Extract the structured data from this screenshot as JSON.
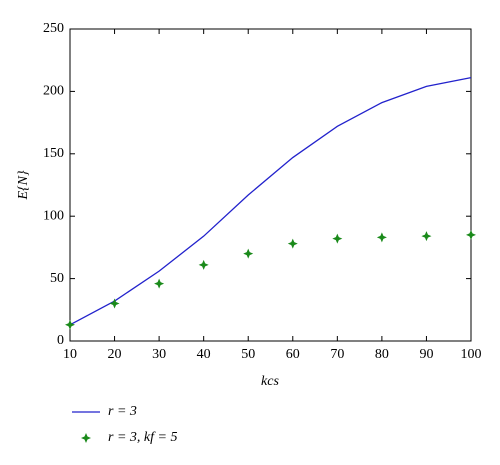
{
  "chart_data": {
    "type": "line",
    "x": [
      10,
      20,
      30,
      40,
      50,
      60,
      70,
      80,
      90,
      100
    ],
    "series": [
      {
        "name": "r = 3",
        "type": "line",
        "color": "#2222cc",
        "values": [
          13,
          32,
          56,
          84,
          117,
          147,
          172,
          191,
          204,
          211
        ]
      },
      {
        "name": "r = 3, kf = 5",
        "type": "scatter",
        "color": "#1a8a1a",
        "values": [
          13,
          30,
          46,
          61,
          70,
          78,
          82,
          83,
          84,
          85
        ]
      }
    ],
    "xlabel": "kcs",
    "ylabel": "E{N}",
    "xlim": [
      10,
      100
    ],
    "xticks": [
      10,
      20,
      30,
      40,
      50,
      60,
      70,
      80,
      90,
      100
    ],
    "ylim": [
      0,
      250
    ],
    "yticks": [
      0,
      50,
      100,
      150,
      200,
      250
    ],
    "grid": false
  }
}
